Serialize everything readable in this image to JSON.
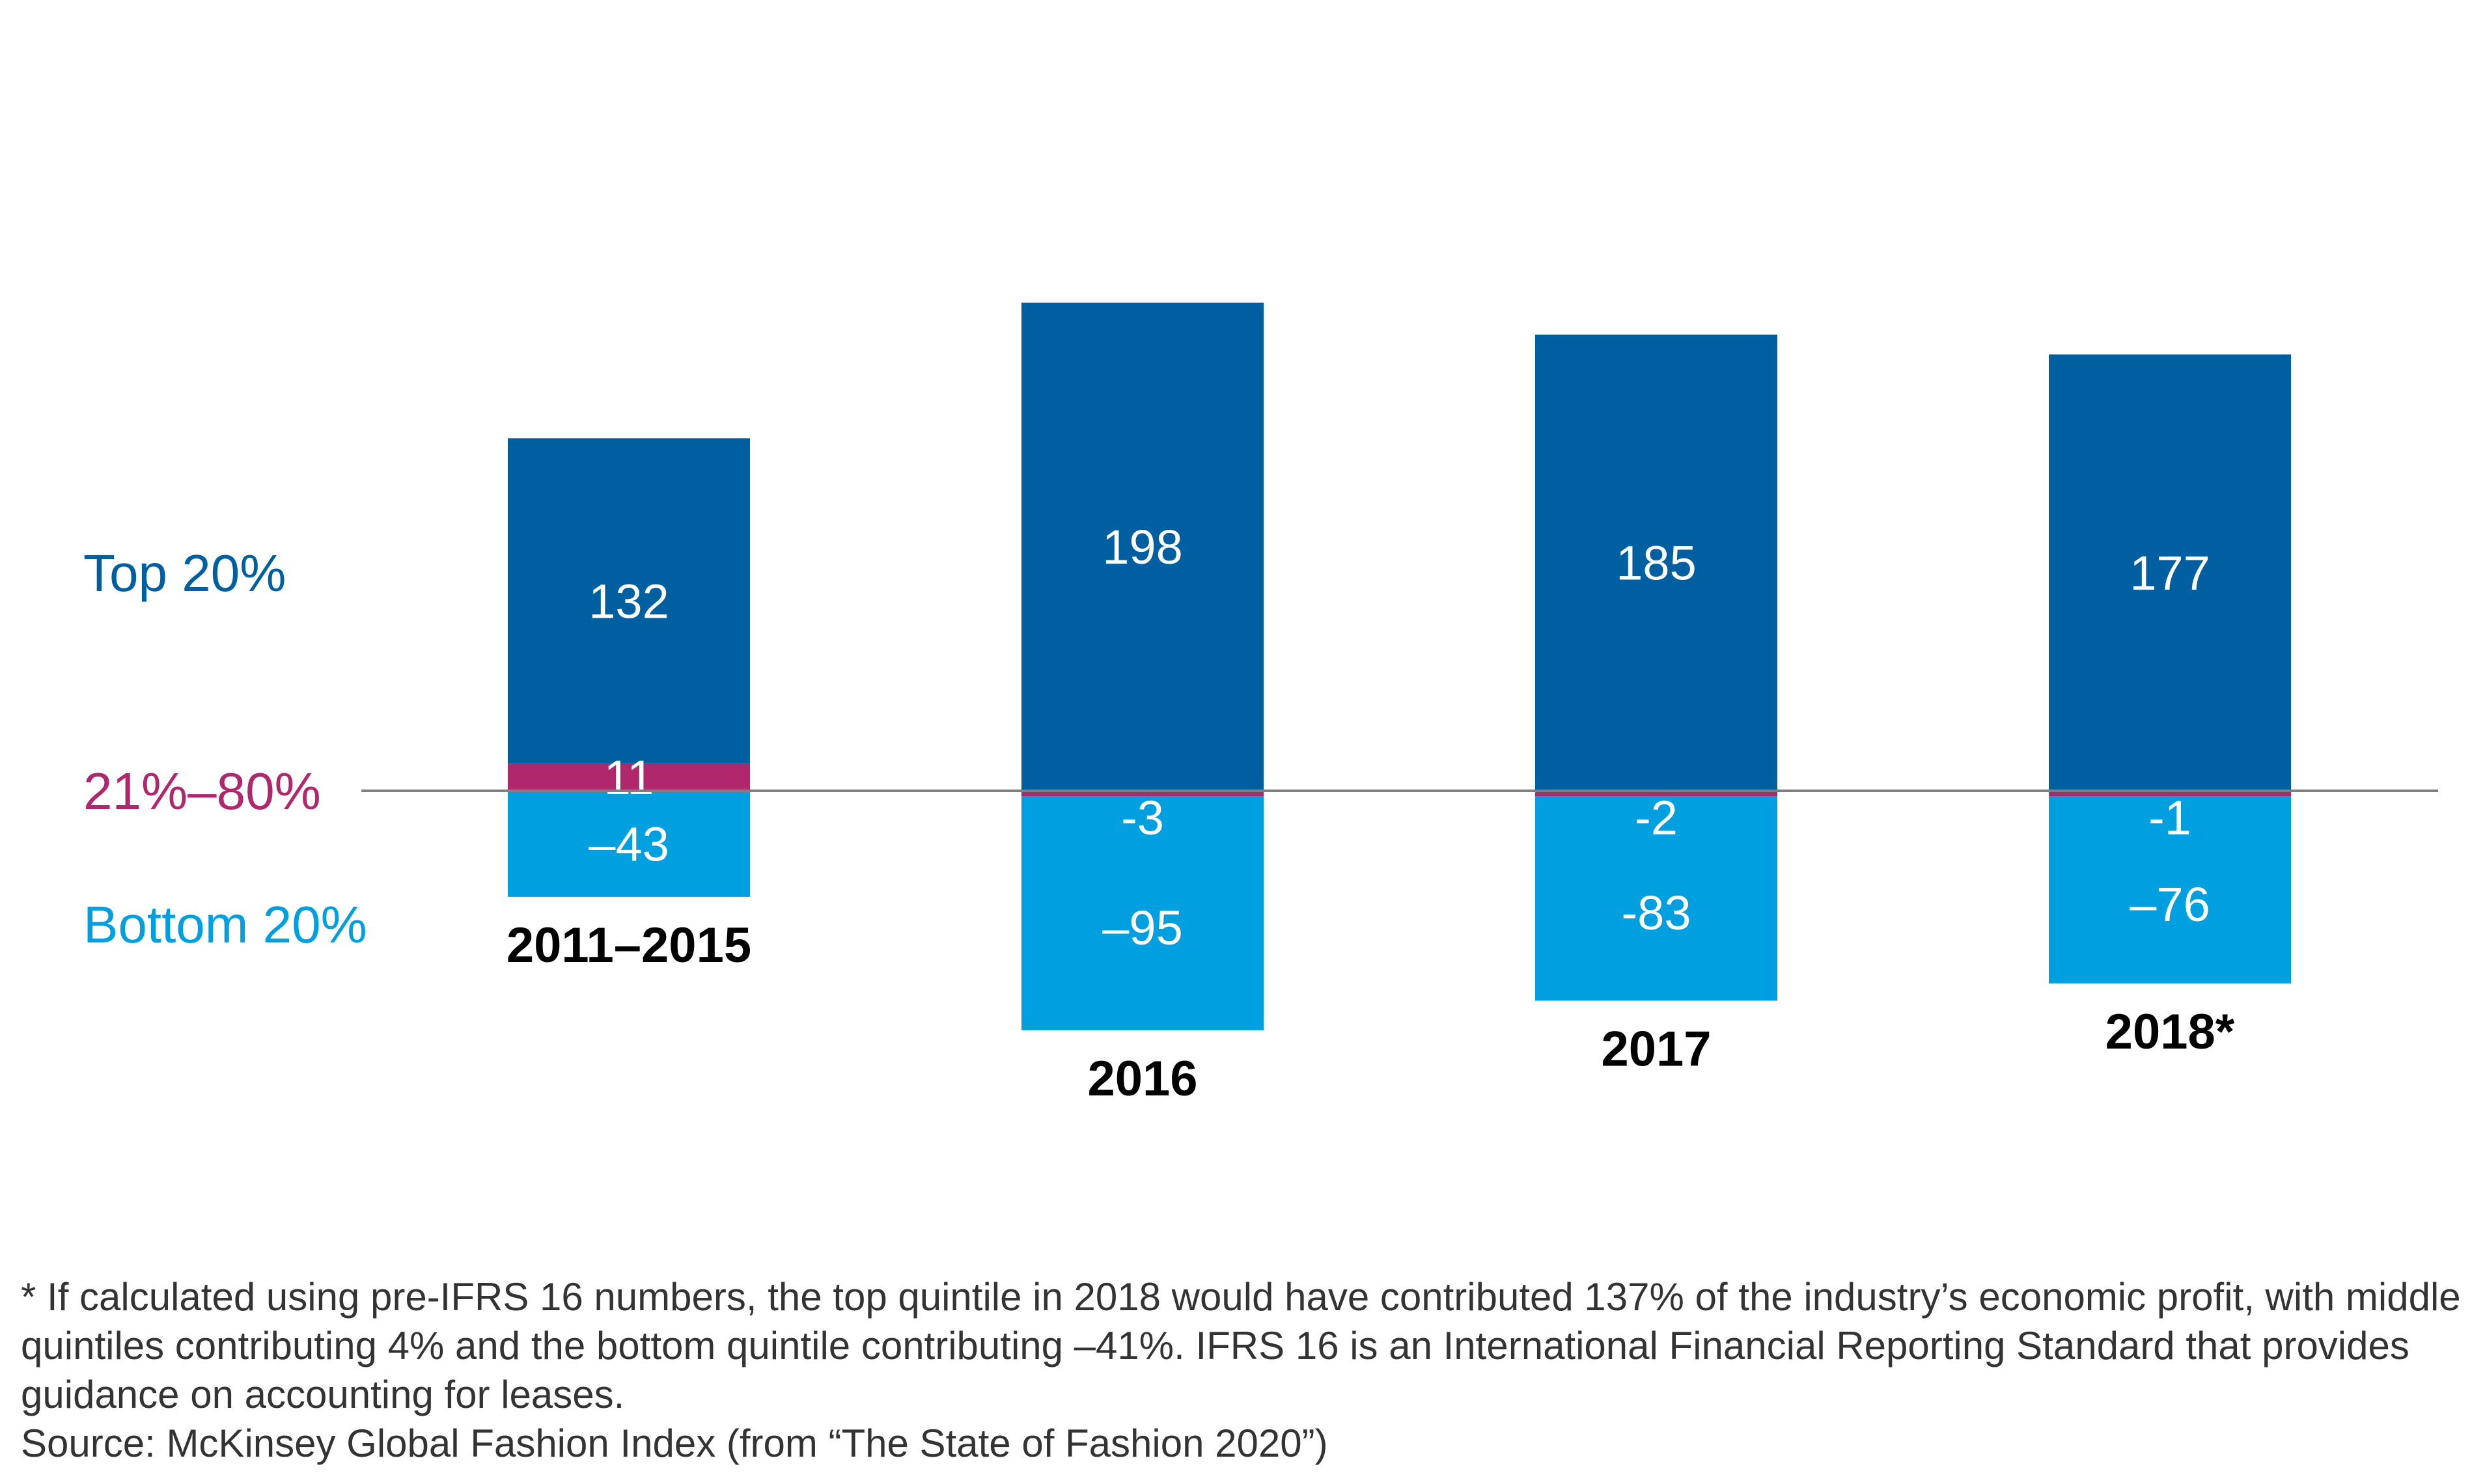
{
  "chart_data": {
    "type": "bar",
    "stacked": true,
    "title": "",
    "xlabel": "",
    "ylabel": "",
    "categories": [
      "2011–2015",
      "2016",
      "2017",
      "2018*"
    ],
    "ylim": [
      -100,
      205
    ],
    "legend": "left",
    "grid": false,
    "baseline": 0,
    "series": [
      {
        "name": "Top 20%",
        "color": "#005fa0",
        "values": [
          132,
          198,
          185,
          177
        ],
        "labels": [
          "132",
          "198",
          "185",
          "177"
        ]
      },
      {
        "name": "21%–80%",
        "color": "#b0276e",
        "values": [
          11,
          -3,
          -2,
          -1
        ],
        "labels": [
          "11",
          "-3",
          "-2",
          "-1"
        ]
      },
      {
        "name": "Bottom 20%",
        "color": "#00a0e0",
        "values": [
          -43,
          -95,
          -83,
          -76
        ],
        "labels": [
          "–43",
          "–95",
          "-83",
          "–76"
        ]
      }
    ]
  },
  "colors": {
    "axis_line": "#7f7f7f"
  },
  "footnote": {
    "note": "* If calculated using pre-IFRS 16 numbers, the top quintile in 2018 would have contributed 137% of the industry’s economic profit, with middle quintiles contributing 4% and the bottom quintile contributing –41%. IFRS 16 is an International Financial Reporting Standard that provides guidance on accounting for leases.",
    "source": "Source: McKinsey Global Fashion Index (from “The State of Fashion 2020”)"
  }
}
